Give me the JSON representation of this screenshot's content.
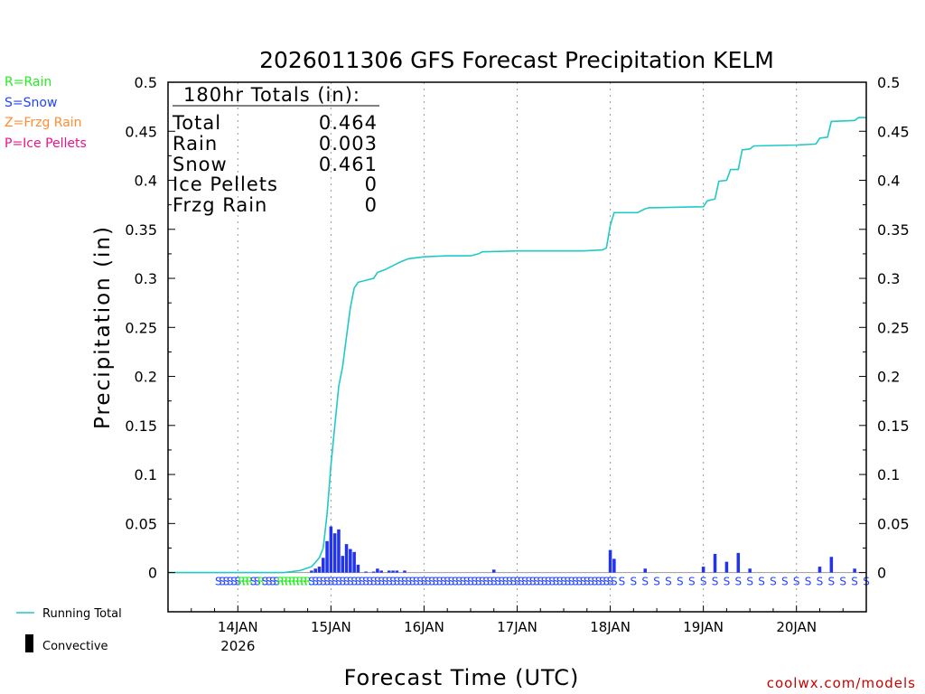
{
  "chart_data": {
    "type": "bar",
    "title": "2026011306 GFS Forecast Precipitation KELM",
    "xlabel": "Forecast Time (UTC)",
    "ylabel": "Precipitation (in)",
    "ylim": [
      -0.04,
      0.5
    ],
    "yticks": [
      0,
      0.05,
      0.1,
      0.15,
      0.2,
      0.25,
      0.3,
      0.35,
      0.4,
      0.45,
      0.5
    ],
    "ytick_labels": [
      "0",
      "0.05",
      "0.1",
      "0.15",
      "0.2",
      "0.25",
      "0.3",
      "0.35",
      "0.4",
      "0.45",
      "0.5"
    ],
    "xlim_hours": [
      6,
      186
    ],
    "day_ticks": [
      {
        "hour": 24,
        "label": "14JAN",
        "sublabel": "2026"
      },
      {
        "hour": 48,
        "label": "15JAN",
        "sublabel": ""
      },
      {
        "hour": 72,
        "label": "16JAN",
        "sublabel": ""
      },
      {
        "hour": 96,
        "label": "17JAN",
        "sublabel": ""
      },
      {
        "hour": 120,
        "label": "18JAN",
        "sublabel": ""
      },
      {
        "hour": 144,
        "label": "19JAN",
        "sublabel": ""
      },
      {
        "hour": 168,
        "label": "20JAN",
        "sublabel": ""
      }
    ],
    "bars": [
      {
        "hour": 43,
        "value": 0.002
      },
      {
        "hour": 44,
        "value": 0.004
      },
      {
        "hour": 45,
        "value": 0.006
      },
      {
        "hour": 46,
        "value": 0.015
      },
      {
        "hour": 47,
        "value": 0.032
      },
      {
        "hour": 48,
        "value": 0.047
      },
      {
        "hour": 49,
        "value": 0.04
      },
      {
        "hour": 50,
        "value": 0.044
      },
      {
        "hour": 51,
        "value": 0.017
      },
      {
        "hour": 52,
        "value": 0.029
      },
      {
        "hour": 53,
        "value": 0.024
      },
      {
        "hour": 54,
        "value": 0.021
      },
      {
        "hour": 55,
        "value": 0.008
      },
      {
        "hour": 57,
        "value": 0.001
      },
      {
        "hour": 59,
        "value": 0.001
      },
      {
        "hour": 60,
        "value": 0.004
      },
      {
        "hour": 61,
        "value": 0.002
      },
      {
        "hour": 63,
        "value": 0.002
      },
      {
        "hour": 64,
        "value": 0.002
      },
      {
        "hour": 65,
        "value": 0.002
      },
      {
        "hour": 67,
        "value": 0.002
      },
      {
        "hour": 90,
        "value": 0.003
      },
      {
        "hour": 120,
        "value": 0.023
      },
      {
        "hour": 121,
        "value": 0.014
      },
      {
        "hour": 129,
        "value": 0.004
      },
      {
        "hour": 144,
        "value": 0.006
      },
      {
        "hour": 147,
        "value": 0.019
      },
      {
        "hour": 150,
        "value": 0.011
      },
      {
        "hour": 153,
        "value": 0.02
      },
      {
        "hour": 156,
        "value": 0.004
      },
      {
        "hour": 174,
        "value": 0.006
      },
      {
        "hour": 177,
        "value": 0.016
      },
      {
        "hour": 183,
        "value": 0.004
      }
    ],
    "running_total": [
      [
        6,
        0
      ],
      [
        36,
        0
      ],
      [
        40,
        0.002
      ],
      [
        43,
        0.006
      ],
      [
        45,
        0.015
      ],
      [
        46,
        0.025
      ],
      [
        47,
        0.06
      ],
      [
        48,
        0.11
      ],
      [
        49,
        0.15
      ],
      [
        50,
        0.19
      ],
      [
        51,
        0.21
      ],
      [
        52,
        0.24
      ],
      [
        53,
        0.27
      ],
      [
        54,
        0.29
      ],
      [
        55,
        0.296
      ],
      [
        58,
        0.299
      ],
      [
        59,
        0.3
      ],
      [
        60,
        0.306
      ],
      [
        62,
        0.309
      ],
      [
        64,
        0.313
      ],
      [
        66,
        0.317
      ],
      [
        68,
        0.32
      ],
      [
        72,
        0.322
      ],
      [
        78,
        0.323
      ],
      [
        84,
        0.323
      ],
      [
        86,
        0.325
      ],
      [
        87,
        0.327
      ],
      [
        96,
        0.328
      ],
      [
        110,
        0.328
      ],
      [
        113,
        0.328
      ],
      [
        118,
        0.329
      ],
      [
        119,
        0.331
      ],
      [
        120,
        0.354
      ],
      [
        121,
        0.367
      ],
      [
        123,
        0.367
      ],
      [
        127,
        0.367
      ],
      [
        129,
        0.371
      ],
      [
        130,
        0.372
      ],
      [
        144,
        0.373
      ],
      [
        145,
        0.379
      ],
      [
        147,
        0.381
      ],
      [
        148,
        0.399
      ],
      [
        150,
        0.4
      ],
      [
        151,
        0.411
      ],
      [
        153,
        0.411
      ],
      [
        154,
        0.431
      ],
      [
        156,
        0.432
      ],
      [
        157,
        0.435
      ],
      [
        168,
        0.436
      ],
      [
        173,
        0.437
      ],
      [
        174,
        0.443
      ],
      [
        176,
        0.444
      ],
      [
        177,
        0.46
      ],
      [
        183,
        0.461
      ],
      [
        184,
        0.464
      ],
      [
        186,
        0.464
      ]
    ],
    "ptype_legend": [
      {
        "label": "R=Rain",
        "color": "#22ee22"
      },
      {
        "label": "S=Snow",
        "color": "#2244ff"
      },
      {
        "label": "Z=Frzg Rain",
        "color": "#ff8c33"
      },
      {
        "label": "P=Ice Pellets",
        "color": "#ee1188"
      }
    ],
    "ptype_markers": {
      "dense_start": 19,
      "dense_end": 121,
      "sparse_start": 123,
      "sparse_end": 186,
      "sparse_step": 3,
      "rain_hours": [
        25,
        26,
        27,
        30,
        35,
        36,
        37,
        38,
        39,
        40,
        41,
        42
      ]
    },
    "totals": {
      "header": "180hr Totals (in):",
      "rows": [
        {
          "label": "Total",
          "value": "0.464"
        },
        {
          "label": "Rain",
          "value": "0.003"
        },
        {
          "label": "Snow",
          "value": "0.461"
        },
        {
          "label": "Ice Pellets",
          "value": "0"
        },
        {
          "label": "Frzg Rain",
          "value": "0"
        }
      ]
    },
    "legend": {
      "running_total_label": "Running Total",
      "convective_label": "Convective"
    },
    "colors": {
      "bar": "#2233ee",
      "line": "#22c8c8",
      "grid": "#999999",
      "credit": "#cc0000"
    },
    "credit": "coolwx.com/models"
  }
}
